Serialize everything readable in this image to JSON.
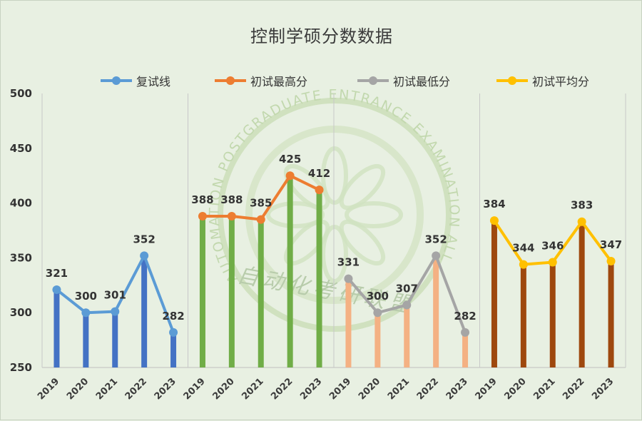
{
  "chart_data": {
    "type": "line",
    "title": "控制学硕分数数据",
    "ylim": [
      250,
      500
    ],
    "yticks": [
      250,
      300,
      350,
      400,
      450,
      500
    ],
    "grid": "vertical group separators",
    "legend_position": "top",
    "watermark": {
      "arc_text": "AUTOMATION POSTGRADUATE ENTRANCE EXAMINATION ALLIANCE",
      "center_text": "自动化考研联盟"
    },
    "groups": [
      {
        "name": "复试线",
        "color": "#5b9bd5",
        "bar_color": "#4472c4",
        "x": [
          "2019",
          "2020",
          "2021",
          "2022",
          "2023"
        ],
        "values": [
          321,
          300,
          301,
          352,
          282
        ]
      },
      {
        "name": "初试最高分",
        "color": "#ed7d31",
        "bar_color": "#70ad47",
        "x": [
          "2019",
          "2020",
          "2021",
          "2022",
          "2023"
        ],
        "values": [
          388,
          388,
          385,
          425,
          412
        ]
      },
      {
        "name": "初试最低分",
        "color": "#a5a5a5",
        "bar_color": "#f4b183",
        "x": [
          "2019",
          "2020",
          "2021",
          "2022",
          "2023"
        ],
        "values": [
          331,
          300,
          307,
          352,
          282
        ]
      },
      {
        "name": "初试平均分",
        "color": "#ffc000",
        "bar_color": "#9e480e",
        "x": [
          "2019",
          "2020",
          "2021",
          "2022",
          "2023"
        ],
        "values": [
          384,
          344,
          346,
          383,
          347
        ]
      }
    ]
  }
}
